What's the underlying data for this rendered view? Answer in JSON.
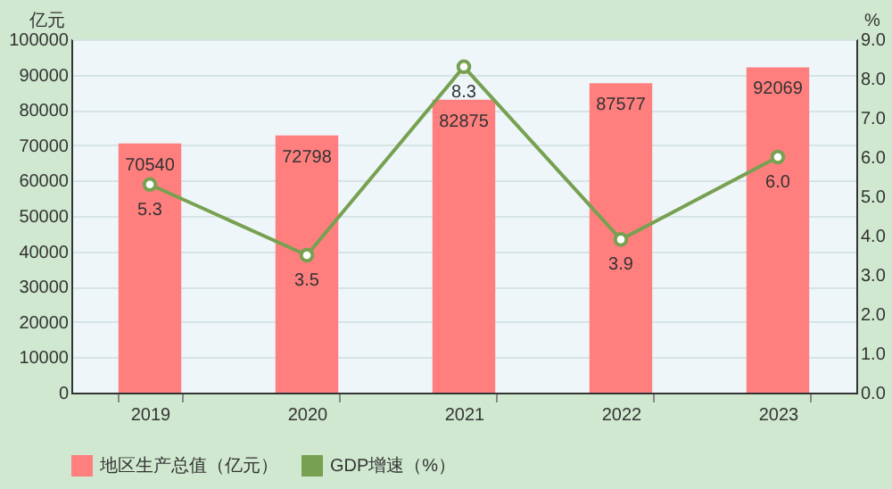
{
  "chart_data": {
    "type": "bar",
    "categories": [
      "2019",
      "2020",
      "2021",
      "2022",
      "2023"
    ],
    "ylabel": "亿元",
    "y2label": "%",
    "series": [
      {
        "name": "地区生产总值（亿元）",
        "color": "#ff7f7f",
        "values": [
          70540,
          72798,
          82875,
          87577,
          92069
        ],
        "value_labels": [
          "70540",
          "72798",
          "82875",
          "87577",
          "92069"
        ]
      },
      {
        "name": "GDP增速（%）",
        "type": "line",
        "axis": "y2",
        "color": "#77a150",
        "values": [
          5.3,
          3.5,
          8.3,
          3.9,
          6.0
        ],
        "value_labels": [
          "5.3",
          "3.5",
          "8.3",
          "3.9",
          "6.0"
        ]
      }
    ],
    "ylim": [
      0,
      100000
    ],
    "yticks": [
      0,
      10000,
      20000,
      30000,
      40000,
      50000,
      60000,
      70000,
      80000,
      90000,
      100000
    ],
    "y2lim": [
      0,
      9
    ],
    "y2ticks": [
      {
        "value": 0,
        "label": "0.0"
      },
      {
        "value": 1,
        "label": "1.0"
      },
      {
        "value": 2,
        "label": "2.0"
      },
      {
        "value": 3,
        "label": "3.0"
      },
      {
        "value": 4,
        "label": "4.0"
      },
      {
        "value": 5,
        "label": "5.0"
      },
      {
        "value": 6,
        "label": "6.0"
      },
      {
        "value": 7,
        "label": "7.0"
      },
      {
        "value": 8,
        "label": "8.0"
      },
      {
        "value": 9,
        "label": "9.0"
      }
    ],
    "grid": "y",
    "legend": "bottom",
    "marker": "circle",
    "line_style": "solid"
  }
}
